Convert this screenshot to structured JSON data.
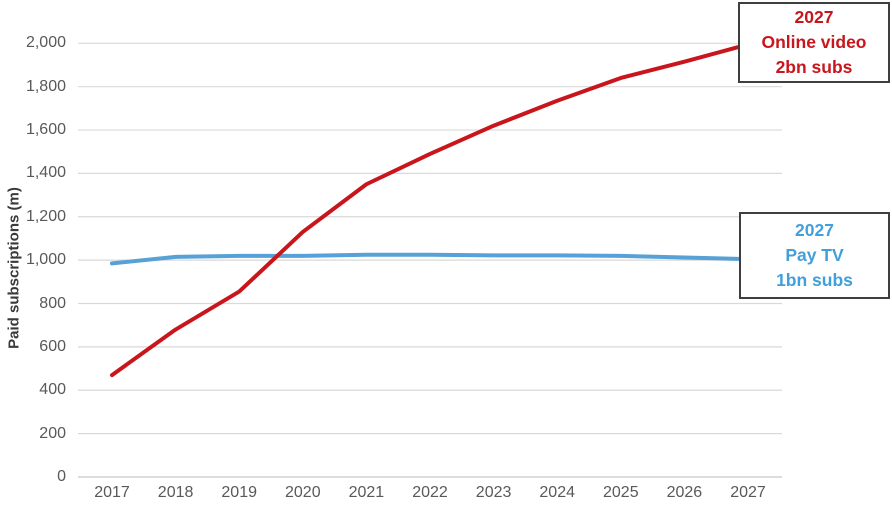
{
  "chart_data": {
    "type": "line",
    "title": "",
    "ylabel": "Paid subscriptions (m)",
    "xlabel": "",
    "categories": [
      "2017",
      "2018",
      "2019",
      "2020",
      "2021",
      "2022",
      "2023",
      "2024",
      "2025",
      "2026",
      "2027"
    ],
    "series": [
      {
        "name": "Online video",
        "color": "#C8161C",
        "values": [
          470,
          680,
          855,
          1130,
          1350,
          1490,
          1620,
          1735,
          1840,
          1915,
          1995
        ]
      },
      {
        "name": "Pay TV",
        "color": "#58A1D6",
        "values": [
          985,
          1015,
          1020,
          1020,
          1025,
          1025,
          1022,
          1022,
          1020,
          1012,
          1005
        ]
      }
    ],
    "ylim": [
      0,
      2000
    ],
    "ytick_step": 200,
    "ytick_labels": [
      "0",
      "200",
      "400",
      "600",
      "800",
      "1,000",
      "1,200",
      "1,400",
      "1,600",
      "1,800",
      "2,000"
    ],
    "grid": true,
    "gridline_color": "#D9D9D9",
    "legend_position": "none"
  },
  "annotations": [
    {
      "id": "online-video-callout",
      "lines": [
        "2027",
        "Online video",
        "2bn subs"
      ],
      "color": "#C8161C"
    },
    {
      "id": "pay-tv-callout",
      "lines": [
        "2027",
        "Pay TV",
        "1bn subs"
      ],
      "color": "#41A0DB"
    }
  ]
}
